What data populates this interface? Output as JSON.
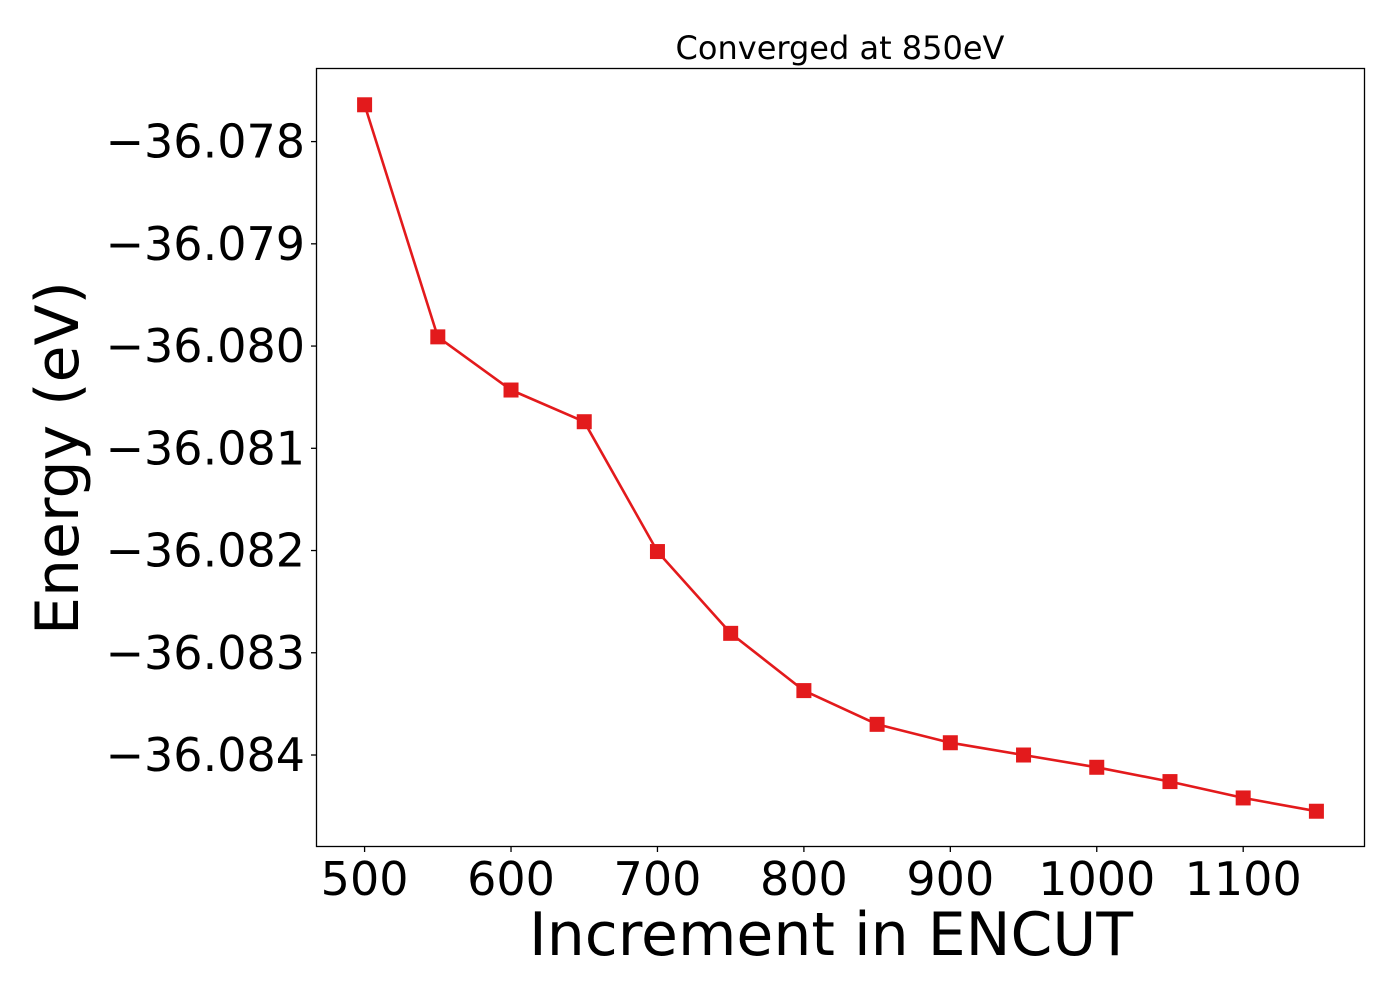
{
  "chart_data": {
    "type": "line",
    "title": "Converged at 850eV",
    "xlabel": "Increment in ENCUT",
    "ylabel": "Energy (eV)",
    "x": [
      500,
      550,
      600,
      650,
      700,
      750,
      800,
      850,
      900,
      950,
      1000,
      1050,
      1100,
      1150
    ],
    "series": [
      {
        "values": [
          -36.07764,
          -36.07991,
          -36.08043,
          -36.08074,
          -36.08201,
          -36.08281,
          -36.08337,
          -36.0837,
          -36.08388,
          -36.084,
          -36.08412,
          -36.08426,
          -36.08442,
          -36.08455
        ],
        "color": "#e31a1c",
        "marker": "square"
      }
    ],
    "xticks": [
      500,
      600,
      700,
      800,
      900,
      1000,
      1100
    ],
    "xtick_labels": [
      "500",
      "600",
      "700",
      "800",
      "900",
      "1000",
      "1100"
    ],
    "yticks": [
      -36.078,
      -36.079,
      -36.08,
      -36.081,
      -36.082,
      -36.083,
      -36.084
    ],
    "ytick_labels": [
      "−36.078",
      "−36.079",
      "−36.080",
      "−36.081",
      "−36.082",
      "−36.083",
      "−36.084"
    ],
    "xlim": [
      467.5,
      1182.5
    ],
    "ylim": [
      -36.08489,
      -36.07729
    ],
    "grid": false,
    "legend": "none"
  }
}
